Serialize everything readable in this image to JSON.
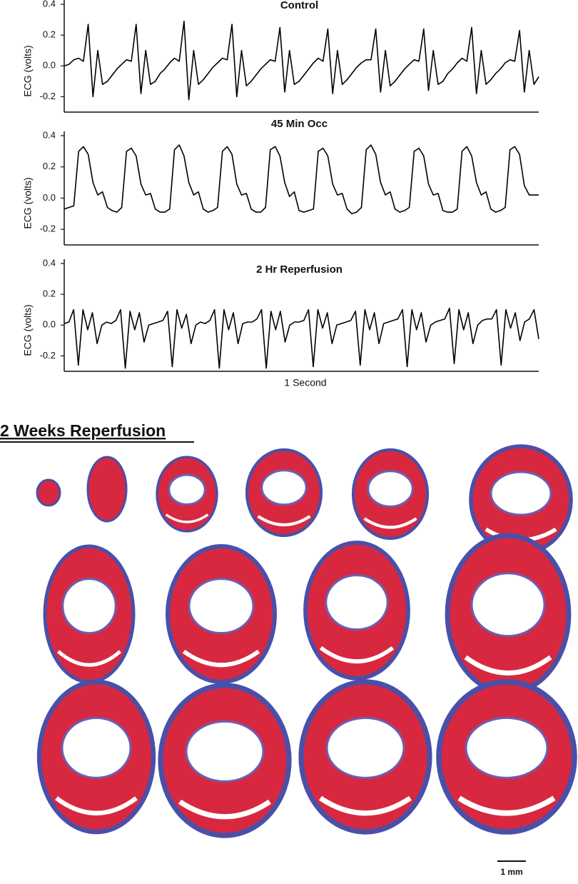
{
  "chart_data": [
    {
      "type": "line",
      "title": "Control",
      "ylabel": "ECG (volts)",
      "color": "#000000",
      "ylim": [
        -0.3,
        0.4
      ],
      "yticks": [
        -0.2,
        {
          "value": 0,
          "label": "0.0"
        },
        0.2,
        0.4
      ],
      "values": [
        0.0,
        0.01,
        0.04,
        0.05,
        0.03,
        0.27,
        -0.2,
        0.1,
        -0.12,
        -0.1,
        -0.06,
        -0.02,
        0.01,
        0.04,
        0.03,
        0.27,
        -0.18,
        0.1,
        -0.12,
        -0.1,
        -0.05,
        -0.02,
        0.02,
        0.05,
        0.03,
        0.29,
        -0.22,
        0.1,
        -0.12,
        -0.09,
        -0.05,
        -0.01,
        0.02,
        0.05,
        0.04,
        0.27,
        -0.2,
        0.1,
        -0.13,
        -0.1,
        -0.06,
        -0.02,
        0.01,
        0.04,
        0.03,
        0.25,
        -0.17,
        0.1,
        -0.12,
        -0.1,
        -0.06,
        -0.02,
        0.02,
        0.05,
        0.03,
        0.24,
        -0.18,
        0.1,
        -0.12,
        -0.09,
        -0.05,
        -0.01,
        0.02,
        0.04,
        0.04,
        0.24,
        -0.17,
        0.1,
        -0.13,
        -0.1,
        -0.06,
        -0.02,
        0.01,
        0.04,
        0.03,
        0.24,
        -0.16,
        0.1,
        -0.12,
        -0.1,
        -0.05,
        -0.02,
        0.02,
        0.05,
        0.03,
        0.25,
        -0.18,
        0.1,
        -0.12,
        -0.09,
        -0.05,
        -0.02,
        0.02,
        0.04,
        0.03,
        0.23,
        -0.17,
        0.1,
        -0.12,
        -0.07
      ]
    },
    {
      "type": "line",
      "title": "45 Min Occ",
      "ylabel": "ECG (volts)",
      "color": "#000000",
      "ylim": [
        -0.3,
        0.4
      ],
      "yticks": [
        -0.2,
        {
          "value": 0,
          "label": "0.0"
        },
        0.2,
        0.4
      ],
      "values": [
        -0.07,
        -0.06,
        -0.05,
        0.3,
        0.33,
        0.28,
        0.1,
        0.02,
        0.04,
        -0.06,
        -0.08,
        -0.09,
        -0.06,
        0.3,
        0.32,
        0.27,
        0.09,
        0.02,
        0.03,
        -0.07,
        -0.09,
        -0.09,
        -0.07,
        0.31,
        0.34,
        0.27,
        0.1,
        0.02,
        0.04,
        -0.07,
        -0.09,
        -0.08,
        -0.06,
        0.3,
        0.33,
        0.28,
        0.09,
        0.02,
        0.03,
        -0.07,
        -0.09,
        -0.09,
        -0.06,
        0.31,
        0.33,
        0.27,
        0.1,
        0.01,
        0.04,
        -0.08,
        -0.09,
        -0.08,
        -0.07,
        0.3,
        0.32,
        0.27,
        0.09,
        0.02,
        0.03,
        -0.07,
        -0.1,
        -0.09,
        -0.06,
        0.31,
        0.34,
        0.28,
        0.1,
        0.02,
        0.04,
        -0.07,
        -0.09,
        -0.08,
        -0.06,
        0.3,
        0.32,
        0.27,
        0.09,
        0.02,
        0.03,
        -0.08,
        -0.09,
        -0.09,
        -0.07,
        0.3,
        0.33,
        0.27,
        0.1,
        0.02,
        0.04,
        -0.07,
        -0.09,
        -0.08,
        -0.06,
        0.31,
        0.33,
        0.28,
        0.08,
        0.02,
        0.02,
        0.02
      ]
    },
    {
      "type": "line",
      "title": "2 Hr Reperfusion",
      "ylabel": "ECG (volts)",
      "xlabel": "1 Second",
      "color": "#000000",
      "ylim": [
        -0.3,
        0.4
      ],
      "yticks": [
        -0.2,
        {
          "value": 0,
          "label": "0.0"
        },
        0.2,
        0.4
      ],
      "values": [
        0.01,
        0.02,
        0.1,
        -0.26,
        0.1,
        -0.03,
        0.08,
        -0.12,
        0.0,
        0.02,
        0.01,
        0.03,
        0.1,
        -0.28,
        0.09,
        -0.03,
        0.08,
        -0.11,
        0.0,
        0.01,
        0.02,
        0.03,
        0.09,
        -0.27,
        0.1,
        -0.02,
        0.07,
        -0.12,
        0.0,
        0.02,
        0.01,
        0.03,
        0.1,
        -0.28,
        0.1,
        -0.03,
        0.08,
        -0.12,
        0.01,
        0.02,
        0.02,
        0.04,
        0.1,
        -0.28,
        0.09,
        -0.03,
        0.09,
        -0.11,
        0.0,
        0.02,
        0.02,
        0.03,
        0.1,
        -0.27,
        0.1,
        -0.02,
        0.08,
        -0.12,
        0.0,
        0.01,
        0.02,
        0.03,
        0.09,
        -0.26,
        0.1,
        -0.03,
        0.08,
        -0.12,
        0.01,
        0.02,
        0.03,
        0.04,
        0.1,
        -0.27,
        0.1,
        -0.03,
        0.08,
        -0.11,
        0.0,
        0.02,
        0.03,
        0.04,
        0.11,
        -0.25,
        0.1,
        -0.03,
        0.08,
        -0.12,
        0.0,
        0.03,
        0.04,
        0.04,
        0.1,
        -0.26,
        0.1,
        -0.02,
        0.08,
        -0.1,
        0.02,
        0.04,
        0.1,
        -0.09
      ]
    }
  ],
  "heading": "2 Weeks Reperfusion",
  "scale_bar_label": "1 mm"
}
